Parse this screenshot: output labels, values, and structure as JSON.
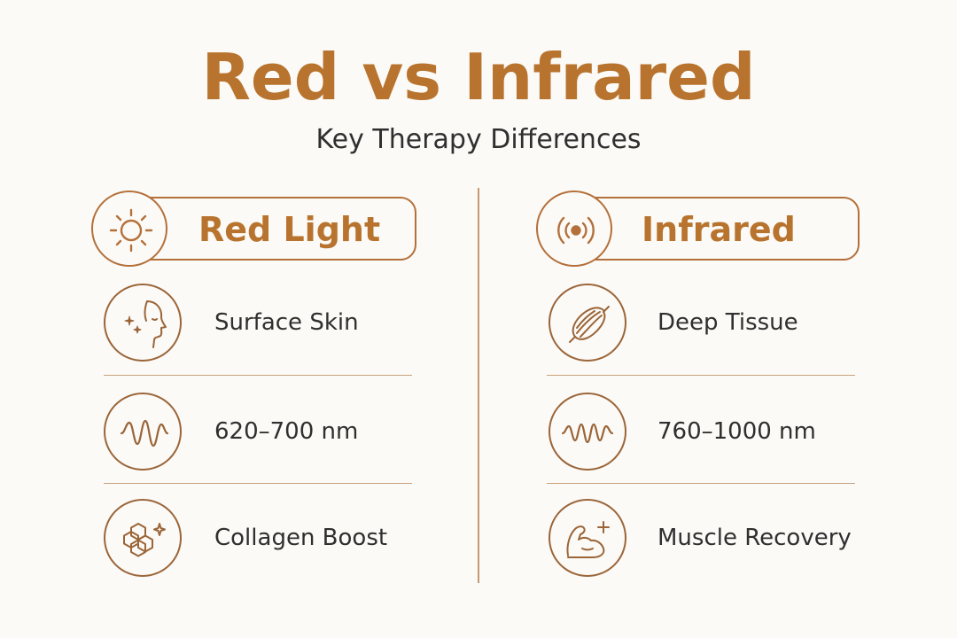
{
  "title": "Red vs Infrared",
  "subtitle": "Key Therapy Differences",
  "left": {
    "header": {
      "label": "Red Light",
      "icon": "sun-icon"
    },
    "rows": [
      {
        "label": "Surface Skin",
        "icon": "face-sparkle-icon"
      },
      {
        "label": "620–700 nm",
        "icon": "wave-icon"
      },
      {
        "label": "Collagen Boost",
        "icon": "hexagon-cluster-icon"
      }
    ]
  },
  "right": {
    "header": {
      "label": "Infrared",
      "icon": "radiating-signal-icon"
    },
    "rows": [
      {
        "label": "Deep Tissue",
        "icon": "muscle-fiber-icon"
      },
      {
        "label": "760–1000 nm",
        "icon": "wave-icon"
      },
      {
        "label": "Muscle Recovery",
        "icon": "flexed-arm-icon"
      }
    ]
  },
  "colors": {
    "accent": "#b8742e",
    "line": "#b4703a",
    "text": "#2f2f2f",
    "background": "#fbfaf7"
  }
}
